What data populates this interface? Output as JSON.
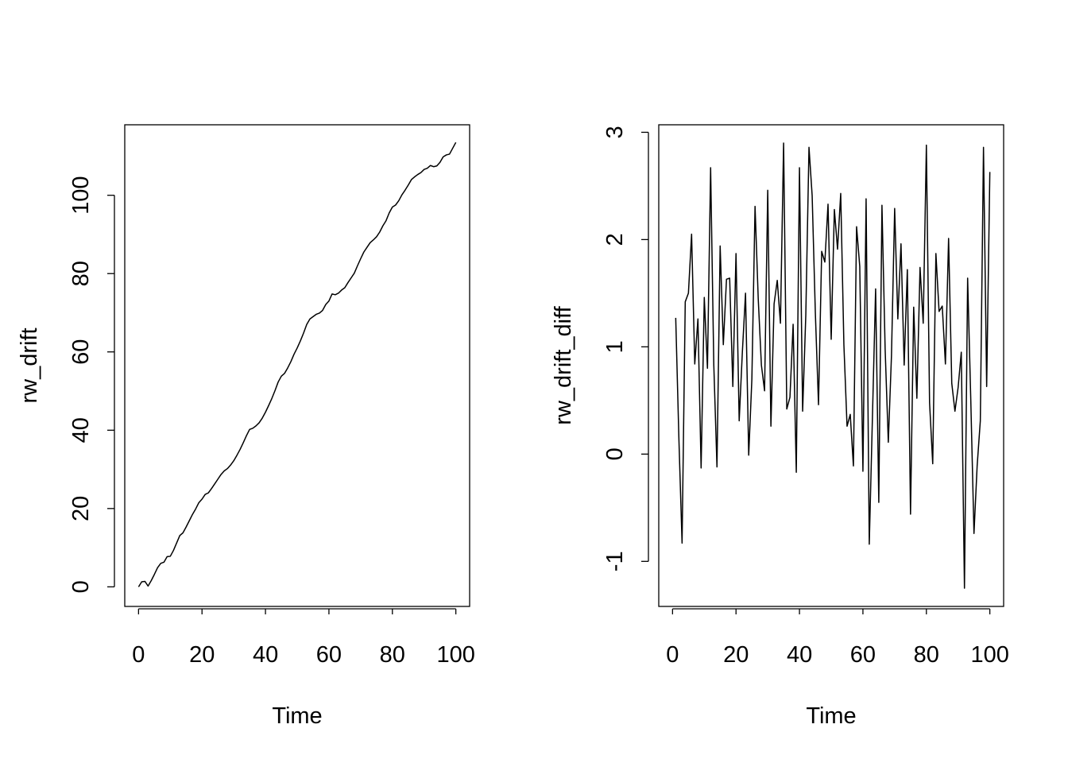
{
  "chart_data": [
    {
      "type": "line",
      "xlabel": "Time",
      "ylabel": "rw_drift",
      "xlim": [
        0,
        100
      ],
      "ylim": [
        -5,
        118
      ],
      "x_ticks": [
        0,
        20,
        40,
        60,
        80,
        100
      ],
      "y_ticks": [
        0,
        20,
        40,
        60,
        80,
        100
      ],
      "x_tick_labels": [
        "0",
        "20",
        "40",
        "60",
        "80",
        "100"
      ],
      "y_tick_labels": [
        "0",
        "20",
        "40",
        "60",
        "80",
        "100"
      ],
      "grid": false,
      "line_color": "#000000",
      "x_start": 0,
      "values": [
        0,
        1.3,
        1.4,
        0.2,
        1.6,
        3.2,
        4.9,
        6.0,
        6.3,
        7.7,
        7.8,
        9.3,
        11.2,
        13.1,
        13.8,
        15.3,
        16.9,
        18.5,
        19.9,
        21.5,
        22.4,
        23.6,
        24.0,
        25.1,
        26.3,
        27.5,
        28.7,
        29.6,
        30.2,
        31.1,
        32.2,
        33.6,
        35.1,
        36.8,
        38.6,
        40.2,
        40.5,
        41.1,
        41.9,
        43.1,
        44.6,
        46.3,
        48.1,
        50.1,
        52.3,
        53.8,
        54.5,
        55.9,
        57.5,
        59.4,
        61.0,
        62.8,
        64.8,
        67.0,
        68.4,
        69.0,
        69.6,
        69.9,
        70.6,
        72.1,
        73.0,
        74.8,
        74.6,
        75.0,
        75.8,
        76.4,
        77.7,
        78.9,
        80.1,
        82.0,
        83.8,
        85.5,
        86.7,
        87.9,
        88.6,
        89.4,
        90.6,
        92.2,
        93.5,
        95.5,
        97.0,
        97.5,
        98.6,
        100.1,
        101.3,
        102.6,
        104.0,
        104.7,
        105.3,
        105.8,
        106.6,
        106.9,
        107.6,
        107.3,
        107.5,
        108.4,
        109.8,
        110.3,
        110.5,
        112.0,
        113.5
      ]
    },
    {
      "type": "line",
      "xlabel": "Time",
      "ylabel": "rw_drift_diff",
      "xlim": [
        0,
        100
      ],
      "ylim": [
        -1.42,
        3.07
      ],
      "x_ticks": [
        0,
        20,
        40,
        60,
        80,
        100
      ],
      "y_ticks": [
        -1,
        0,
        1,
        2,
        3
      ],
      "x_tick_labels": [
        "0",
        "20",
        "40",
        "60",
        "80",
        "100"
      ],
      "y_tick_labels": [
        "-1",
        "0",
        "1",
        "2",
        "3"
      ],
      "grid": false,
      "line_color": "#000000",
      "x_start": 1,
      "values": [
        1.27,
        0.14,
        -0.83,
        1.42,
        1.5,
        2.05,
        0.84,
        1.26,
        -0.13,
        1.46,
        0.8,
        2.67,
        0.83,
        -0.12,
        1.94,
        1.02,
        1.63,
        1.64,
        0.63,
        1.87,
        0.31,
        0.95,
        1.5,
        -0.01,
        0.7,
        2.31,
        1.45,
        0.83,
        0.59,
        2.46,
        0.26,
        1.4,
        1.62,
        1.22,
        2.9,
        0.42,
        0.53,
        1.21,
        -0.17,
        2.67,
        0.4,
        1.3,
        2.86,
        2.41,
        1.32,
        0.46,
        1.89,
        1.79,
        2.33,
        1.07,
        2.28,
        1.91,
        2.43,
        1.02,
        0.26,
        0.37,
        -0.11,
        2.12,
        1.75,
        -0.16,
        2.38,
        -0.84,
        0.35,
        1.54,
        -0.45,
        2.32,
        0.98,
        0.11,
        0.92,
        2.29,
        1.26,
        1.96,
        0.83,
        1.72,
        -0.56,
        1.37,
        0.52,
        1.74,
        1.22,
        2.88,
        0.48,
        -0.09,
        1.87,
        1.33,
        1.38,
        0.84,
        2.01,
        0.66,
        0.4,
        0.62,
        0.95,
        -1.25,
        1.64,
        0.5,
        -0.74,
        -0.11,
        0.31,
        2.86,
        0.63,
        2.63
      ]
    }
  ]
}
